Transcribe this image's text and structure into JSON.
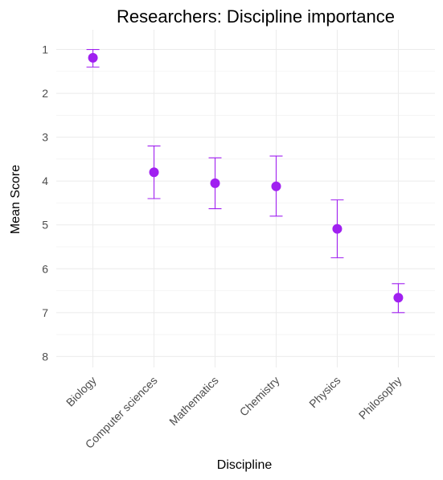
{
  "chart_data": {
    "type": "scatter",
    "title": "Researchers: Discipline importance",
    "xlabel": "Discipline",
    "ylabel": "Mean Score",
    "y_reversed": true,
    "ylim": [
      0.55,
      8.25
    ],
    "yticks": [
      1,
      2,
      3,
      4,
      5,
      6,
      7,
      8
    ],
    "grid": true,
    "categories": [
      "Biology",
      "Computer sciences",
      "Mathematics",
      "Chemistry",
      "Physics",
      "Philosophy"
    ],
    "series": [
      {
        "color": "#a020f0",
        "values": [
          1.19,
          3.8,
          4.05,
          4.12,
          5.09,
          6.66
        ],
        "error_low": [
          1.0,
          3.2,
          3.47,
          3.43,
          4.43,
          6.34
        ],
        "error_high": [
          1.4,
          4.4,
          4.63,
          4.8,
          5.75,
          7.0
        ]
      }
    ]
  }
}
